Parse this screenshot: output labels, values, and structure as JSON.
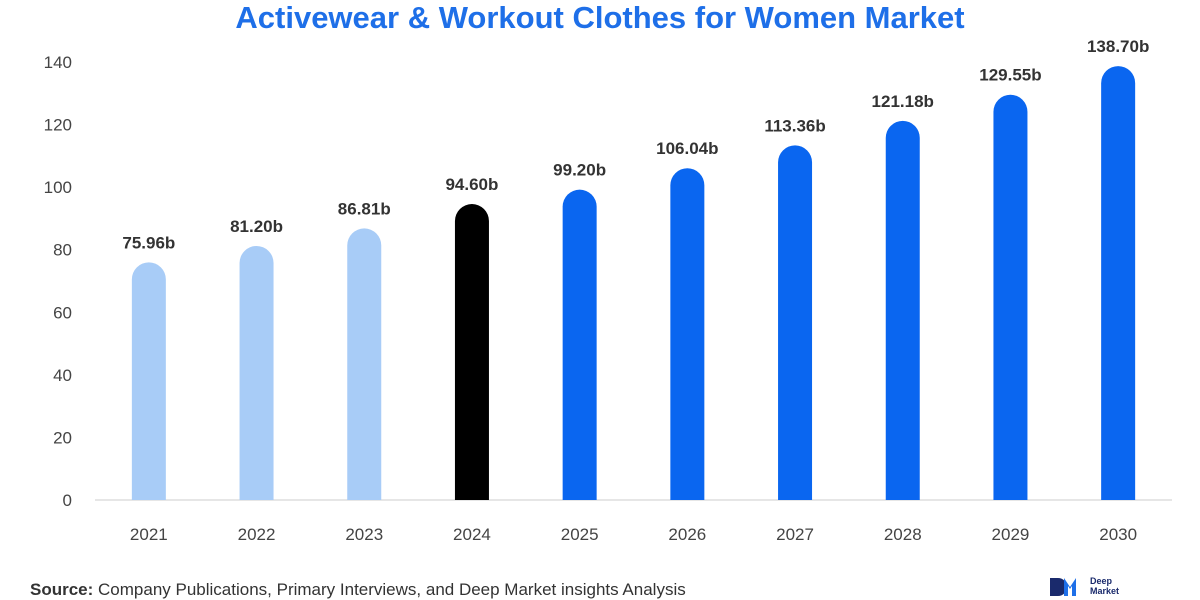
{
  "chart_data": {
    "type": "bar",
    "title": "Activewear & Workout Clothes for Women Market",
    "categories": [
      "2021",
      "2022",
      "2023",
      "2024",
      "2025",
      "2026",
      "2027",
      "2028",
      "2029",
      "2030"
    ],
    "values": [
      75.96,
      81.2,
      86.81,
      94.6,
      99.2,
      106.04,
      113.36,
      121.18,
      129.55,
      138.7
    ],
    "data_labels": [
      "75.96b",
      "81.20b",
      "86.81b",
      "94.60b",
      "99.20b",
      "106.04b",
      "113.36b",
      "121.18b",
      "129.55b",
      "138.70b"
    ],
    "xlabel": "",
    "ylabel": "",
    "ylim": [
      0,
      140
    ],
    "yticks": [
      0,
      20,
      40,
      60,
      80,
      100,
      120,
      140
    ],
    "ytick_labels": [
      "0",
      "20",
      "40",
      "60",
      "80",
      "100",
      "120",
      "140"
    ],
    "grid": false,
    "legend": "none",
    "bar_colors": [
      "#a8ccf7",
      "#a8ccf7",
      "#a8ccf7",
      "#000000",
      "#0a66f0",
      "#0a66f0",
      "#0a66f0",
      "#0a66f0",
      "#0a66f0",
      "#0a66f0"
    ],
    "label_color": "#333333",
    "axis_color": "#dddddd"
  },
  "source": {
    "label": "Source:",
    "text": " Company Publications, Primary Interviews, and Deep Market insights Analysis"
  },
  "logo": {
    "line1": "Deep",
    "line2": "Market"
  }
}
